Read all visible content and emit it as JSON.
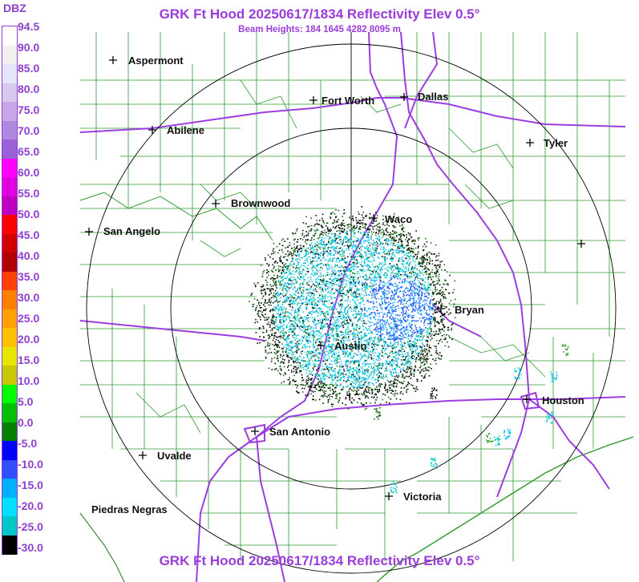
{
  "title": "GRK Ft Hood 20250617/1834 Reflectivity Elev 0.5°",
  "subtitle": "Beam Heights: 184 1645 4282 8095 m",
  "footer": "GRK Ft Hood 20250617/1834 Reflectivity Elev 0.5°",
  "legend": {
    "unit": "DBZ",
    "labels": [
      "94.5",
      "90.0",
      "85.0",
      "80.0",
      "75.0",
      "70.0",
      "65.0",
      "60.0",
      "55.0",
      "50.0",
      "45.0",
      "40.0",
      "35.0",
      "30.0",
      "25.0",
      "20.0",
      "15.0",
      "10.0",
      "5.0",
      "0.0",
      "-5.0",
      "-10.0",
      "-15.0",
      "-20.0",
      "-25.0",
      "-30.0"
    ],
    "colors": [
      "#ffffff",
      "#f0f0f0",
      "#e6e6fa",
      "#d8c8f0",
      "#c8a8e8",
      "#b088e0",
      "#9a60d8",
      "#ff00ff",
      "#e000e0",
      "#c000c0",
      "#ff0000",
      "#d00000",
      "#b00000",
      "#ff4000",
      "#ff8000",
      "#ffa000",
      "#ffc000",
      "#e6e600",
      "#c8c800",
      "#00ff00",
      "#00c000",
      "#008000",
      "#0000ff",
      "#3050ff",
      "#00b0ff",
      "#00e0ff",
      "#00c8c8",
      "#000000"
    ]
  },
  "cities": [
    {
      "name": "Aspermont"
    },
    {
      "name": "Fort Worth"
    },
    {
      "name": "Dallas"
    },
    {
      "name": "Abilene"
    },
    {
      "name": "Tyler"
    },
    {
      "name": "Brownwood"
    },
    {
      "name": "Waco"
    },
    {
      "name": "San Angelo"
    },
    {
      "name": "Bryan"
    },
    {
      "name": "Austin"
    },
    {
      "name": "Houston"
    },
    {
      "name": "San Antonio"
    },
    {
      "name": "Uvalde"
    },
    {
      "name": "Victoria"
    },
    {
      "name": "Piedras Negras"
    },
    {
      "name": ""
    }
  ],
  "colors": {
    "title": "#9a3cd9",
    "county_lines": "#2e9a2e",
    "state_border": "#3a8a3a",
    "highways": "#9b3de0",
    "range_rings": "#000000"
  }
}
